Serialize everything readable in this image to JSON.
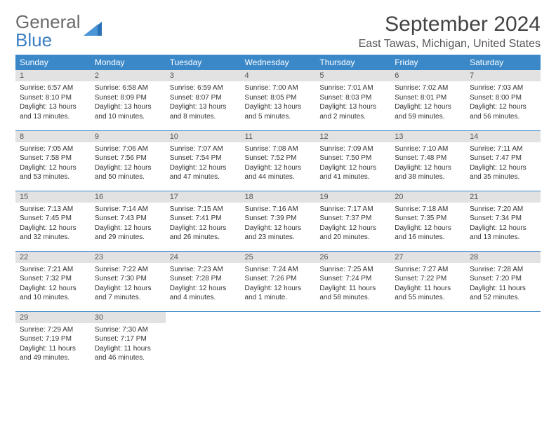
{
  "logo": {
    "text1": "General",
    "text2": "Blue"
  },
  "title": "September 2024",
  "location": "East Tawas, Michigan, United States",
  "colors": {
    "header_bg": "#3b88c9",
    "header_text": "#ffffff",
    "daynum_bg": "#e2e2e2",
    "logo_gray": "#6b6b6b",
    "logo_blue": "#3b7fc4",
    "row_border": "#3b88c9"
  },
  "weekdays": [
    "Sunday",
    "Monday",
    "Tuesday",
    "Wednesday",
    "Thursday",
    "Friday",
    "Saturday"
  ],
  "days": [
    {
      "n": "1",
      "sr": "6:57 AM",
      "ss": "8:10 PM",
      "dl": "13 hours and 13 minutes."
    },
    {
      "n": "2",
      "sr": "6:58 AM",
      "ss": "8:09 PM",
      "dl": "13 hours and 10 minutes."
    },
    {
      "n": "3",
      "sr": "6:59 AM",
      "ss": "8:07 PM",
      "dl": "13 hours and 8 minutes."
    },
    {
      "n": "4",
      "sr": "7:00 AM",
      "ss": "8:05 PM",
      "dl": "13 hours and 5 minutes."
    },
    {
      "n": "5",
      "sr": "7:01 AM",
      "ss": "8:03 PM",
      "dl": "13 hours and 2 minutes."
    },
    {
      "n": "6",
      "sr": "7:02 AM",
      "ss": "8:01 PM",
      "dl": "12 hours and 59 minutes."
    },
    {
      "n": "7",
      "sr": "7:03 AM",
      "ss": "8:00 PM",
      "dl": "12 hours and 56 minutes."
    },
    {
      "n": "8",
      "sr": "7:05 AM",
      "ss": "7:58 PM",
      "dl": "12 hours and 53 minutes."
    },
    {
      "n": "9",
      "sr": "7:06 AM",
      "ss": "7:56 PM",
      "dl": "12 hours and 50 minutes."
    },
    {
      "n": "10",
      "sr": "7:07 AM",
      "ss": "7:54 PM",
      "dl": "12 hours and 47 minutes."
    },
    {
      "n": "11",
      "sr": "7:08 AM",
      "ss": "7:52 PM",
      "dl": "12 hours and 44 minutes."
    },
    {
      "n": "12",
      "sr": "7:09 AM",
      "ss": "7:50 PM",
      "dl": "12 hours and 41 minutes."
    },
    {
      "n": "13",
      "sr": "7:10 AM",
      "ss": "7:48 PM",
      "dl": "12 hours and 38 minutes."
    },
    {
      "n": "14",
      "sr": "7:11 AM",
      "ss": "7:47 PM",
      "dl": "12 hours and 35 minutes."
    },
    {
      "n": "15",
      "sr": "7:13 AM",
      "ss": "7:45 PM",
      "dl": "12 hours and 32 minutes."
    },
    {
      "n": "16",
      "sr": "7:14 AM",
      "ss": "7:43 PM",
      "dl": "12 hours and 29 minutes."
    },
    {
      "n": "17",
      "sr": "7:15 AM",
      "ss": "7:41 PM",
      "dl": "12 hours and 26 minutes."
    },
    {
      "n": "18",
      "sr": "7:16 AM",
      "ss": "7:39 PM",
      "dl": "12 hours and 23 minutes."
    },
    {
      "n": "19",
      "sr": "7:17 AM",
      "ss": "7:37 PM",
      "dl": "12 hours and 20 minutes."
    },
    {
      "n": "20",
      "sr": "7:18 AM",
      "ss": "7:35 PM",
      "dl": "12 hours and 16 minutes."
    },
    {
      "n": "21",
      "sr": "7:20 AM",
      "ss": "7:34 PM",
      "dl": "12 hours and 13 minutes."
    },
    {
      "n": "22",
      "sr": "7:21 AM",
      "ss": "7:32 PM",
      "dl": "12 hours and 10 minutes."
    },
    {
      "n": "23",
      "sr": "7:22 AM",
      "ss": "7:30 PM",
      "dl": "12 hours and 7 minutes."
    },
    {
      "n": "24",
      "sr": "7:23 AM",
      "ss": "7:28 PM",
      "dl": "12 hours and 4 minutes."
    },
    {
      "n": "25",
      "sr": "7:24 AM",
      "ss": "7:26 PM",
      "dl": "12 hours and 1 minute."
    },
    {
      "n": "26",
      "sr": "7:25 AM",
      "ss": "7:24 PM",
      "dl": "11 hours and 58 minutes."
    },
    {
      "n": "27",
      "sr": "7:27 AM",
      "ss": "7:22 PM",
      "dl": "11 hours and 55 minutes."
    },
    {
      "n": "28",
      "sr": "7:28 AM",
      "ss": "7:20 PM",
      "dl": "11 hours and 52 minutes."
    },
    {
      "n": "29",
      "sr": "7:29 AM",
      "ss": "7:19 PM",
      "dl": "11 hours and 49 minutes."
    },
    {
      "n": "30",
      "sr": "7:30 AM",
      "ss": "7:17 PM",
      "dl": "11 hours and 46 minutes."
    }
  ],
  "labels": {
    "sunrise": "Sunrise:",
    "sunset": "Sunset:",
    "daylight": "Daylight:"
  }
}
